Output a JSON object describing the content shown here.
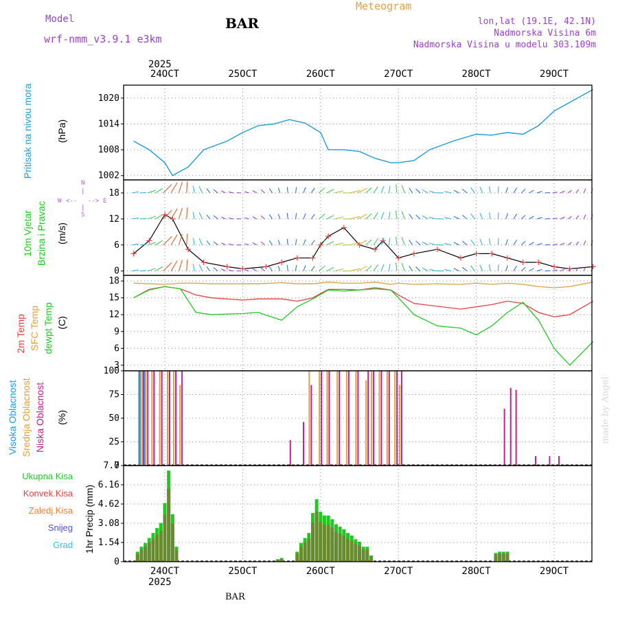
{
  "header": {
    "model_label": "Model",
    "model_name": "wrf-nmm_v3.9.1 e3km",
    "station": "BAR",
    "meteogram_label": "Meteogram",
    "lonlat": "lon,lat (19.1E, 42.1N)",
    "elevation": "Nadmorska Visina 6m",
    "model_elevation": "Nadmorska Visina u modelu 303.109m",
    "year": "2025"
  },
  "footer": {
    "station": "BAR",
    "signature": "made by Angel"
  },
  "colors": {
    "pressure": "#1e9bdc",
    "temp2m": "#e84040",
    "sfc": "#e0a040",
    "dewpt": "#22c822",
    "purple": "#9a40d0",
    "high": "#1e9bdc",
    "mid": "#e0a040",
    "low": "#c02090",
    "total": "#22c822",
    "conv": "#e84040",
    "frz": "#f08030",
    "snow": "#5050e0",
    "hail": "#30c8c8"
  },
  "legend": {
    "pressure": [
      "Pritisak na nivou mora",
      "(hPa)"
    ],
    "wind": [
      "10m Vjetar",
      "Brzina i Pravac",
      "(m/s)"
    ],
    "compass": {
      "n": "N",
      "s": "S",
      "e": "E",
      "w": "W"
    },
    "temp": [
      "2m Temp",
      "SFC Temp",
      "dewpt Temp",
      "(C)"
    ],
    "cloud": [
      "Visoka Oblacnost",
      "Srednja Oblacnost",
      "Niska Oblacnost",
      "(%)"
    ],
    "precip": [
      "Ukupna Kisa",
      "Konvek.Kisa",
      "Zaledj.Kisa",
      "Snijeg",
      "Grad",
      "1hr Precip (mm)"
    ]
  },
  "chart_data": [
    {
      "type": "line",
      "title": "Pritisak na nivou mora",
      "ylabel": "(hPa)",
      "x_dates": [
        "24OCT",
        "25OCT",
        "26OCT",
        "27OCT",
        "28OCT",
        "29OCT"
      ],
      "ylim": [
        1001,
        1023
      ],
      "yticks": [
        1002,
        1008,
        1014,
        1020
      ],
      "x": [
        23.6,
        23.8,
        24.0,
        24.1,
        24.3,
        24.5,
        24.8,
        25.0,
        25.2,
        25.4,
        25.6,
        25.8,
        26.0,
        26.1,
        26.3,
        26.5,
        26.7,
        26.9,
        27.0,
        27.2,
        27.4,
        27.7,
        28.0,
        28.2,
        28.4,
        28.6,
        28.8,
        29.0,
        29.2,
        29.4,
        29.5
      ],
      "series": [
        {
          "name": "pressure",
          "values": [
            1010,
            1008,
            1005,
            1002,
            1004,
            1008,
            1010,
            1012,
            1013.6,
            1014,
            1015,
            1014.2,
            1012,
            1008,
            1008,
            1007.6,
            1006,
            1005,
            1005,
            1005.5,
            1008,
            1010,
            1011.6,
            1011.4,
            1012,
            1011.6,
            1013.6,
            1017,
            1019,
            1021,
            1022
          ]
        }
      ]
    },
    {
      "type": "line",
      "title": "10m Vjetar",
      "ylabel": "(m/s)",
      "ylim": [
        -1,
        21
      ],
      "yticks": [
        0,
        6,
        12,
        18
      ],
      "x": [
        23.6,
        23.8,
        24.0,
        24.1,
        24.3,
        24.5,
        24.8,
        25.0,
        25.3,
        25.5,
        25.7,
        25.9,
        26.0,
        26.1,
        26.3,
        26.5,
        26.7,
        26.8,
        27.0,
        27.2,
        27.5,
        27.8,
        28.0,
        28.2,
        28.4,
        28.6,
        28.8,
        29.0,
        29.2,
        29.5
      ],
      "series": [
        {
          "name": "speed",
          "values": [
            4,
            7,
            13,
            12,
            5,
            2,
            1,
            0.5,
            1,
            2,
            3,
            3,
            6,
            8,
            10,
            6,
            5,
            7,
            3,
            4,
            5,
            3,
            4,
            4,
            3,
            2,
            2,
            1,
            0.5,
            1
          ]
        }
      ]
    },
    {
      "type": "line",
      "title": "Temp",
      "ylabel": "(C)",
      "ylim": [
        2,
        19
      ],
      "yticks": [
        3,
        6,
        9,
        12,
        15,
        18
      ],
      "x": [
        23.6,
        23.8,
        24.0,
        24.2,
        24.4,
        24.6,
        25.0,
        25.2,
        25.5,
        25.7,
        25.9,
        26.1,
        26.3,
        26.5,
        26.7,
        26.9,
        27.0,
        27.2,
        27.5,
        27.8,
        28.0,
        28.2,
        28.4,
        28.6,
        28.8,
        29.0,
        29.2,
        29.5
      ],
      "series": [
        {
          "name": "2m Temp",
          "values": [
            15,
            16.5,
            17,
            16.6,
            15.5,
            15,
            14.6,
            14.8,
            14.8,
            14.4,
            15,
            16.5,
            16.5,
            16.4,
            16.8,
            16.4,
            15.5,
            14,
            13.5,
            13,
            13.4,
            13.8,
            14.4,
            14,
            12.4,
            11.6,
            12,
            14.4
          ]
        },
        {
          "name": "SFC Temp",
          "values": [
            17.6,
            17.5,
            17.4,
            17.6,
            17.6,
            17.5,
            17.5,
            17.5,
            17.7,
            17.5,
            17.5,
            17.8,
            17.6,
            17.6,
            17.8,
            17.4,
            17.6,
            17.4,
            17.5,
            17.4,
            17.6,
            17.4,
            17.6,
            17.4,
            17.0,
            16.8,
            17.0,
            17.8
          ]
        },
        {
          "name": "dewpt Temp",
          "values": [
            15,
            16.4,
            17,
            16.6,
            12.4,
            12,
            12.2,
            12.4,
            11,
            13.4,
            14.8,
            16.4,
            16.2,
            16.4,
            16.6,
            16.4,
            15,
            12,
            10,
            9.6,
            8.4,
            10,
            12.4,
            14.2,
            11,
            6,
            3,
            7.2
          ]
        }
      ]
    },
    {
      "type": "bar",
      "title": "Oblacnost",
      "ylabel": "(%)",
      "ylim": [
        0,
        100
      ],
      "yticks": [
        0,
        25,
        50,
        75,
        100
      ],
      "x": [
        23.66,
        23.72,
        23.8,
        23.9,
        24.0,
        24.08,
        24.16,
        25.55,
        25.72,
        25.82,
        25.95,
        26.05,
        26.18,
        26.3,
        26.42,
        26.55,
        26.62,
        26.72,
        26.82,
        26.92,
        26.98,
        28.3,
        28.38,
        28.45,
        28.7,
        28.88,
        29.0
      ],
      "series": [
        {
          "name": "Visoka Oblacnost",
          "values": [
            100,
            100,
            0,
            0,
            0,
            0,
            0,
            0,
            0,
            0,
            0,
            0,
            0,
            0,
            0,
            0,
            0,
            0,
            0,
            0,
            2,
            0,
            0,
            0,
            0,
            0,
            0
          ]
        },
        {
          "name": "Srednja Oblacnost",
          "values": [
            100,
            100,
            100,
            100,
            100,
            100,
            85,
            0,
            0,
            100,
            100,
            100,
            100,
            100,
            100,
            90,
            100,
            100,
            100,
            100,
            85,
            0,
            0,
            0,
            0,
            0,
            0
          ]
        },
        {
          "name": "Niska Oblacnost",
          "values": [
            100,
            100,
            100,
            100,
            100,
            100,
            100,
            27,
            46,
            85,
            100,
            100,
            100,
            100,
            100,
            100,
            100,
            100,
            100,
            100,
            100,
            60,
            82,
            80,
            10,
            10,
            10
          ]
        }
      ]
    },
    {
      "type": "bar",
      "title": "1hr Precip",
      "ylabel": "(mm)",
      "ylim": [
        0,
        7.7
      ],
      "yticks": [
        0,
        1.54,
        3.08,
        4.62,
        6.16,
        7.7
      ],
      "x": [
        23.65,
        23.7,
        23.75,
        23.8,
        23.85,
        23.9,
        23.95,
        24.0,
        24.05,
        24.1,
        24.15,
        25.45,
        25.5,
        25.7,
        25.75,
        25.8,
        25.85,
        25.9,
        25.95,
        26.0,
        26.05,
        26.1,
        26.15,
        26.2,
        26.25,
        26.3,
        26.35,
        26.4,
        26.45,
        26.5,
        26.55,
        26.6,
        26.65,
        28.25,
        28.3,
        28.35,
        28.4
      ],
      "series": [
        {
          "name": "Ukupna Kisa",
          "values": [
            0.8,
            1.2,
            1.5,
            1.9,
            2.3,
            2.7,
            3.1,
            4.7,
            7.3,
            3.8,
            1.2,
            0.2,
            0.3,
            0.8,
            1.5,
            1.9,
            2.3,
            3.9,
            5.0,
            4.0,
            3.7,
            3.7,
            3.4,
            3.0,
            2.8,
            2.6,
            2.3,
            2.1,
            1.8,
            1.6,
            1.2,
            1.2,
            0.5,
            0.7,
            0.8,
            0.8,
            0.8
          ]
        }
      ]
    }
  ]
}
